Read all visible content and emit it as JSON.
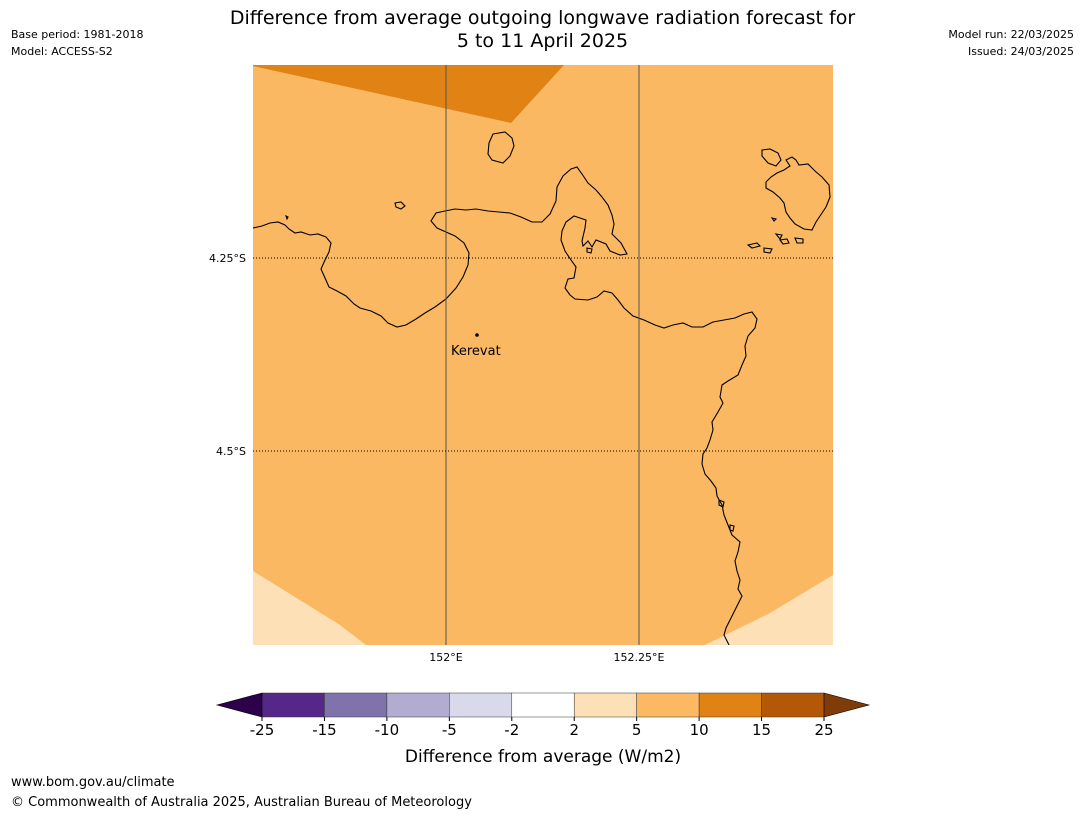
{
  "header": {
    "title_line1": "Difference from average outgoing longwave radiation forecast for",
    "title_line2": "5 to 11 April 2025",
    "base_period": "Base period: 1981-2018",
    "model": "Model: ACCESS-S2",
    "model_run": "Model run: 22/03/2025",
    "issued": "Issued: 24/03/2025"
  },
  "map": {
    "lat_labels": [
      "4.25°S",
      "4.5°S"
    ],
    "lon_labels": [
      "152°E",
      "152.25°E"
    ],
    "place_label": "Kerevat",
    "colors": {
      "band_5_10": "#fbb862",
      "band_10_15": "#e08214",
      "band_2_5": "#fee0b6",
      "coastline": "#000000",
      "gridline": "#000000"
    }
  },
  "colorbar": {
    "label": "Difference from average (W/m2)",
    "ticks": [
      "-25",
      "-15",
      "-10",
      "-5",
      "-2",
      "2",
      "5",
      "10",
      "15",
      "25"
    ],
    "colors": [
      "#542788",
      "#8073ac",
      "#b2abd2",
      "#d8daeb",
      "#ffffff",
      "#fee0b6",
      "#fdb863",
      "#e08214",
      "#b35806"
    ],
    "under_color": "#2d004b",
    "over_color": "#7f3b08"
  },
  "footer": {
    "url": "www.bom.gov.au/climate",
    "copyright": "© Commonwealth of Australia 2025, Australian Bureau of Meteorology"
  }
}
